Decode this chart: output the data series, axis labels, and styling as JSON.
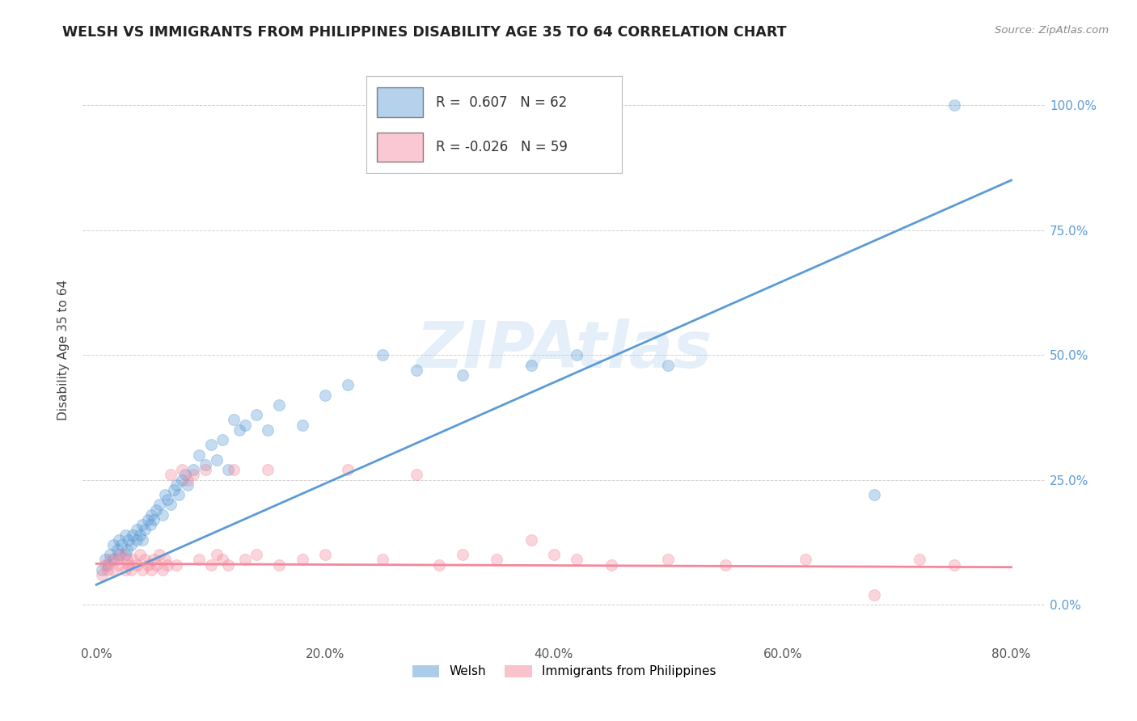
{
  "title": "WELSH VS IMMIGRANTS FROM PHILIPPINES DISABILITY AGE 35 TO 64 CORRELATION CHART",
  "source": "Source: ZipAtlas.com",
  "ylabel": "Disability Age 35 to 64",
  "xlabel_vals": [
    0.0,
    0.2,
    0.4,
    0.6,
    0.8
  ],
  "xlabel_ticks": [
    "0.0%",
    "20.0%",
    "40.0%",
    "60.0%",
    "80.0%"
  ],
  "ylabel_vals_right": [
    0.0,
    0.25,
    0.5,
    0.75,
    1.0
  ],
  "ylabel_ticks_right": [
    "0.0%",
    "25.0%",
    "50.0%",
    "75.0%",
    "100.0%"
  ],
  "xlim": [
    -0.012,
    0.83
  ],
  "ylim": [
    -0.08,
    1.1
  ],
  "welsh_color": "#5B9BD5",
  "philippines_color": "#F4879C",
  "welsh_R": 0.607,
  "welsh_N": 62,
  "philippines_R": -0.026,
  "philippines_N": 59,
  "legend_label_welsh": "Welsh",
  "legend_label_philippines": "Immigrants from Philippines",
  "watermark_text": "ZIPAtlas",
  "welsh_line_x0": 0.0,
  "welsh_line_y0": 0.04,
  "welsh_line_x1": 0.8,
  "welsh_line_y1": 0.85,
  "philippines_line_x0": 0.0,
  "philippines_line_y0": 0.082,
  "philippines_line_x1": 0.8,
  "philippines_line_y1": 0.075,
  "welsh_scatter_x": [
    0.005,
    0.008,
    0.01,
    0.012,
    0.015,
    0.015,
    0.018,
    0.02,
    0.02,
    0.022,
    0.025,
    0.025,
    0.027,
    0.028,
    0.03,
    0.032,
    0.035,
    0.035,
    0.038,
    0.04,
    0.04,
    0.042,
    0.045,
    0.047,
    0.048,
    0.05,
    0.052,
    0.055,
    0.058,
    0.06,
    0.062,
    0.065,
    0.068,
    0.07,
    0.072,
    0.075,
    0.078,
    0.08,
    0.085,
    0.09,
    0.095,
    0.1,
    0.105,
    0.11,
    0.115,
    0.12,
    0.125,
    0.13,
    0.14,
    0.15,
    0.16,
    0.18,
    0.2,
    0.22,
    0.25,
    0.28,
    0.32,
    0.38,
    0.42,
    0.5,
    0.68,
    0.75
  ],
  "welsh_scatter_y": [
    0.07,
    0.09,
    0.08,
    0.1,
    0.09,
    0.12,
    0.11,
    0.1,
    0.13,
    0.12,
    0.1,
    0.14,
    0.11,
    0.13,
    0.12,
    0.14,
    0.13,
    0.15,
    0.14,
    0.16,
    0.13,
    0.15,
    0.17,
    0.16,
    0.18,
    0.17,
    0.19,
    0.2,
    0.18,
    0.22,
    0.21,
    0.2,
    0.23,
    0.24,
    0.22,
    0.25,
    0.26,
    0.24,
    0.27,
    0.3,
    0.28,
    0.32,
    0.29,
    0.33,
    0.27,
    0.37,
    0.35,
    0.36,
    0.38,
    0.35,
    0.4,
    0.36,
    0.42,
    0.44,
    0.5,
    0.47,
    0.46,
    0.48,
    0.5,
    0.48,
    0.22,
    1.0
  ],
  "philippines_scatter_x": [
    0.005,
    0.008,
    0.01,
    0.012,
    0.015,
    0.018,
    0.02,
    0.022,
    0.025,
    0.027,
    0.028,
    0.03,
    0.032,
    0.035,
    0.038,
    0.04,
    0.042,
    0.045,
    0.048,
    0.05,
    0.052,
    0.055,
    0.058,
    0.06,
    0.062,
    0.065,
    0.07,
    0.075,
    0.08,
    0.085,
    0.09,
    0.095,
    0.1,
    0.105,
    0.11,
    0.115,
    0.12,
    0.13,
    0.14,
    0.15,
    0.16,
    0.18,
    0.2,
    0.22,
    0.25,
    0.28,
    0.3,
    0.32,
    0.35,
    0.38,
    0.4,
    0.42,
    0.45,
    0.5,
    0.55,
    0.62,
    0.68,
    0.72,
    0.75
  ],
  "philippines_scatter_y": [
    0.06,
    0.08,
    0.07,
    0.09,
    0.07,
    0.09,
    0.08,
    0.1,
    0.07,
    0.09,
    0.08,
    0.07,
    0.09,
    0.08,
    0.1,
    0.07,
    0.09,
    0.08,
    0.07,
    0.09,
    0.08,
    0.1,
    0.07,
    0.09,
    0.08,
    0.26,
    0.08,
    0.27,
    0.25,
    0.26,
    0.09,
    0.27,
    0.08,
    0.1,
    0.09,
    0.08,
    0.27,
    0.09,
    0.1,
    0.27,
    0.08,
    0.09,
    0.1,
    0.27,
    0.09,
    0.26,
    0.08,
    0.1,
    0.09,
    0.13,
    0.1,
    0.09,
    0.08,
    0.09,
    0.08,
    0.09,
    0.02,
    0.09,
    0.08
  ]
}
